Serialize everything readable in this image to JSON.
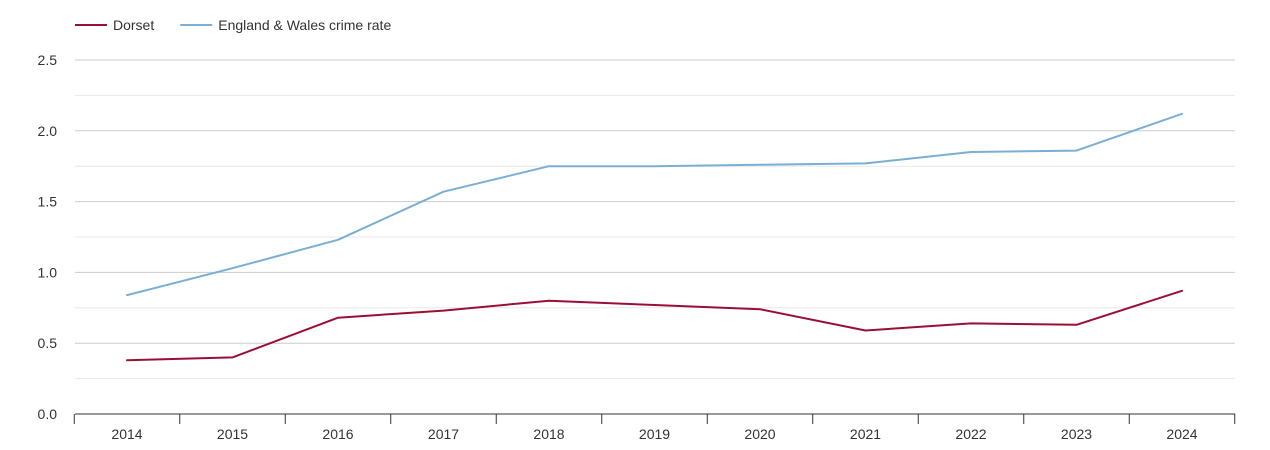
{
  "chart_data": {
    "type": "line",
    "title": "",
    "xlabel": "",
    "ylabel": "",
    "legend_position": "top-left",
    "x": [
      "2014",
      "2015",
      "2016",
      "2017",
      "2018",
      "2019",
      "2020",
      "2021",
      "2022",
      "2023",
      "2024"
    ],
    "ylim": [
      0,
      2.5
    ],
    "y_ticks": [
      "0.0",
      "0.5",
      "1.0",
      "1.5",
      "2.0",
      "2.5"
    ],
    "y_tick_values": [
      0,
      0.5,
      1.0,
      1.5,
      2.0,
      2.5
    ],
    "grid": true,
    "series": [
      {
        "name": "Dorset",
        "color": "#9a0f35",
        "values": [
          0.38,
          0.4,
          0.68,
          0.73,
          0.8,
          0.77,
          0.74,
          0.59,
          0.64,
          0.63,
          0.87
        ]
      },
      {
        "name": "England & Wales crime rate",
        "color": "#7aafd4",
        "values": [
          0.84,
          1.03,
          1.23,
          1.57,
          1.75,
          1.75,
          1.76,
          1.77,
          1.85,
          1.86,
          2.12
        ]
      }
    ]
  }
}
